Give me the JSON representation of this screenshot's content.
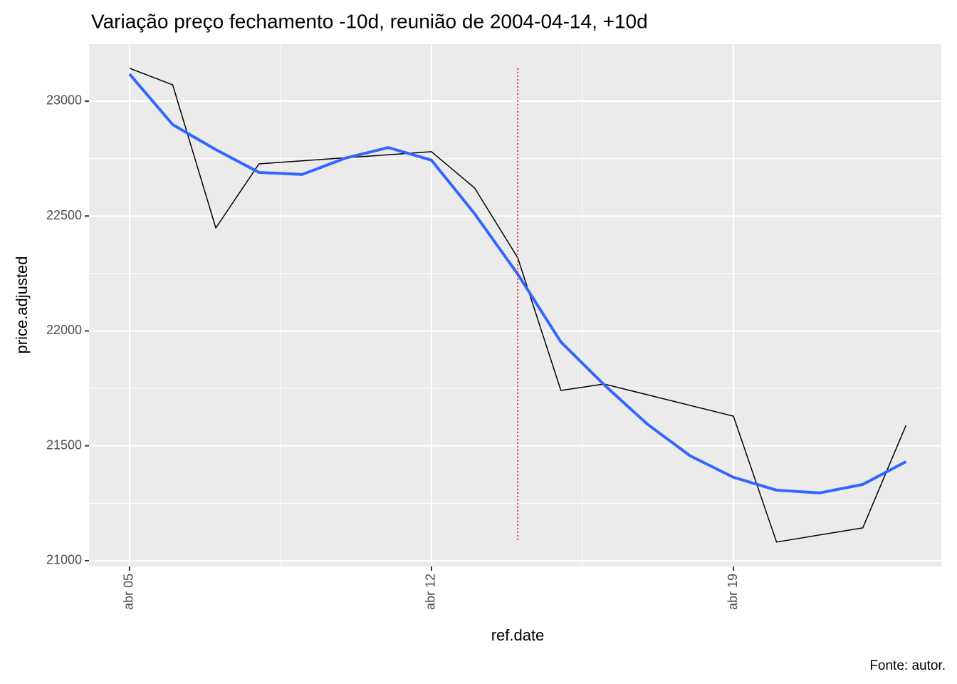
{
  "chart_data": {
    "type": "line",
    "title": "Variação preço fechamento -10d, reunião de 2004-04-14, +10d",
    "x_label": "ref.date",
    "y_label": "price.adjusted",
    "caption": "Fonte: autor.",
    "series": [
      {
        "color": "#000000",
        "x": [
          5,
          6,
          7,
          8,
          12,
          13,
          14,
          15,
          16,
          19,
          20,
          22,
          23
        ],
        "values": [
          23143,
          23071,
          22448,
          22727,
          22780,
          22622,
          22318,
          21741,
          21769,
          21629,
          21081,
          21143,
          21589
        ]
      },
      {
        "color": "#3366ff",
        "x": [
          5,
          6,
          7,
          8,
          9,
          10,
          11,
          12,
          13,
          14,
          15,
          16,
          17,
          18,
          19,
          20,
          21,
          22,
          23
        ],
        "values": [
          23118,
          22898,
          22789,
          22690,
          22681,
          22752,
          22798,
          22743,
          22510,
          22247,
          21952,
          21766,
          21595,
          21456,
          21363,
          21307,
          21295,
          21332,
          21431
        ]
      }
    ],
    "vline": {
      "x": 14,
      "color": "#e00000"
    },
    "xlim": [
      4.06,
      23.82
    ],
    "xticks": [
      {
        "value": 5,
        "label": "abr 05"
      },
      {
        "value": 12,
        "label": "abr 12"
      },
      {
        "value": 19,
        "label": "abr 19"
      }
    ],
    "ylim": [
      20975,
      23248
    ],
    "yticks": [
      21000,
      21500,
      22000,
      22500,
      23000
    ],
    "grid": true
  }
}
